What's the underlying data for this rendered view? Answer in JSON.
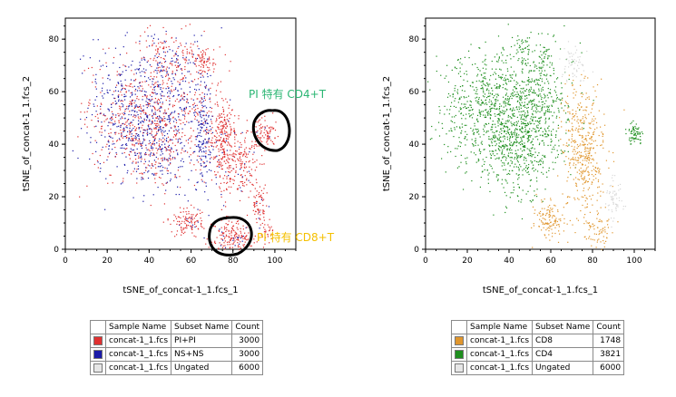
{
  "chart_data": [
    {
      "type": "scatter",
      "xlabel": "tSNE_of_concat-1_1.fcs_1",
      "ylabel": "tSNE_of_concat-1_1.fcs_2",
      "xlim": [
        0,
        110
      ],
      "ylim": [
        0,
        88
      ],
      "xticks": [
        0,
        20,
        40,
        60,
        80,
        100
      ],
      "yticks": [
        0,
        20,
        40,
        60,
        80
      ],
      "series": [
        {
          "name": "concat-1_1.fcs PI+PI",
          "color": "#e03030"
        },
        {
          "name": "concat-1_1.fcs NS+NS",
          "color": "#1a1aa8"
        }
      ],
      "annotations": [
        {
          "text": "PI 特有 CD4+T",
          "color": "#2bb673"
        },
        {
          "text": "PI 特有 CD8+T",
          "color": "#f5c000"
        }
      ]
    },
    {
      "type": "scatter",
      "xlabel": "tSNE_of_concat-1_1.fcs_1",
      "ylabel": "tSNE_of_concat-1_1.fcs_2",
      "xlim": [
        0,
        110
      ],
      "ylim": [
        0,
        88
      ],
      "xticks": [
        0,
        20,
        40,
        60,
        80,
        100
      ],
      "yticks": [
        0,
        20,
        40,
        60,
        80
      ],
      "series": [
        {
          "name": "concat-1_1.fcs CD8",
          "color": "#e0962e"
        },
        {
          "name": "concat-1_1.fcs CD4",
          "color": "#1f8f1f"
        },
        {
          "name": "concat-1_1.fcs Ungated",
          "color": "#d8d8d8"
        }
      ]
    }
  ],
  "legends": [
    {
      "headers": [
        "Sample Name",
        "Subset Name",
        "Count"
      ],
      "rows": [
        {
          "color": "#e03030",
          "sample": "concat-1_1.fcs",
          "subset": "PI+PI",
          "count": "3000"
        },
        {
          "color": "#1a1aa8",
          "sample": "concat-1_1.fcs",
          "subset": "NS+NS",
          "count": "3000"
        },
        {
          "color": "#e6e6e6",
          "sample": "concat-1_1.fcs",
          "subset": "Ungated",
          "count": "6000"
        }
      ]
    },
    {
      "headers": [
        "Sample Name",
        "Subset Name",
        "Count"
      ],
      "rows": [
        {
          "color": "#e0962e",
          "sample": "concat-1_1.fcs",
          "subset": "CD8",
          "count": "1748"
        },
        {
          "color": "#1f8f1f",
          "sample": "concat-1_1.fcs",
          "subset": "CD4",
          "count": "3821"
        },
        {
          "color": "#e6e6e6",
          "sample": "concat-1_1.fcs",
          "subset": "Ungated",
          "count": "6000"
        }
      ]
    }
  ]
}
